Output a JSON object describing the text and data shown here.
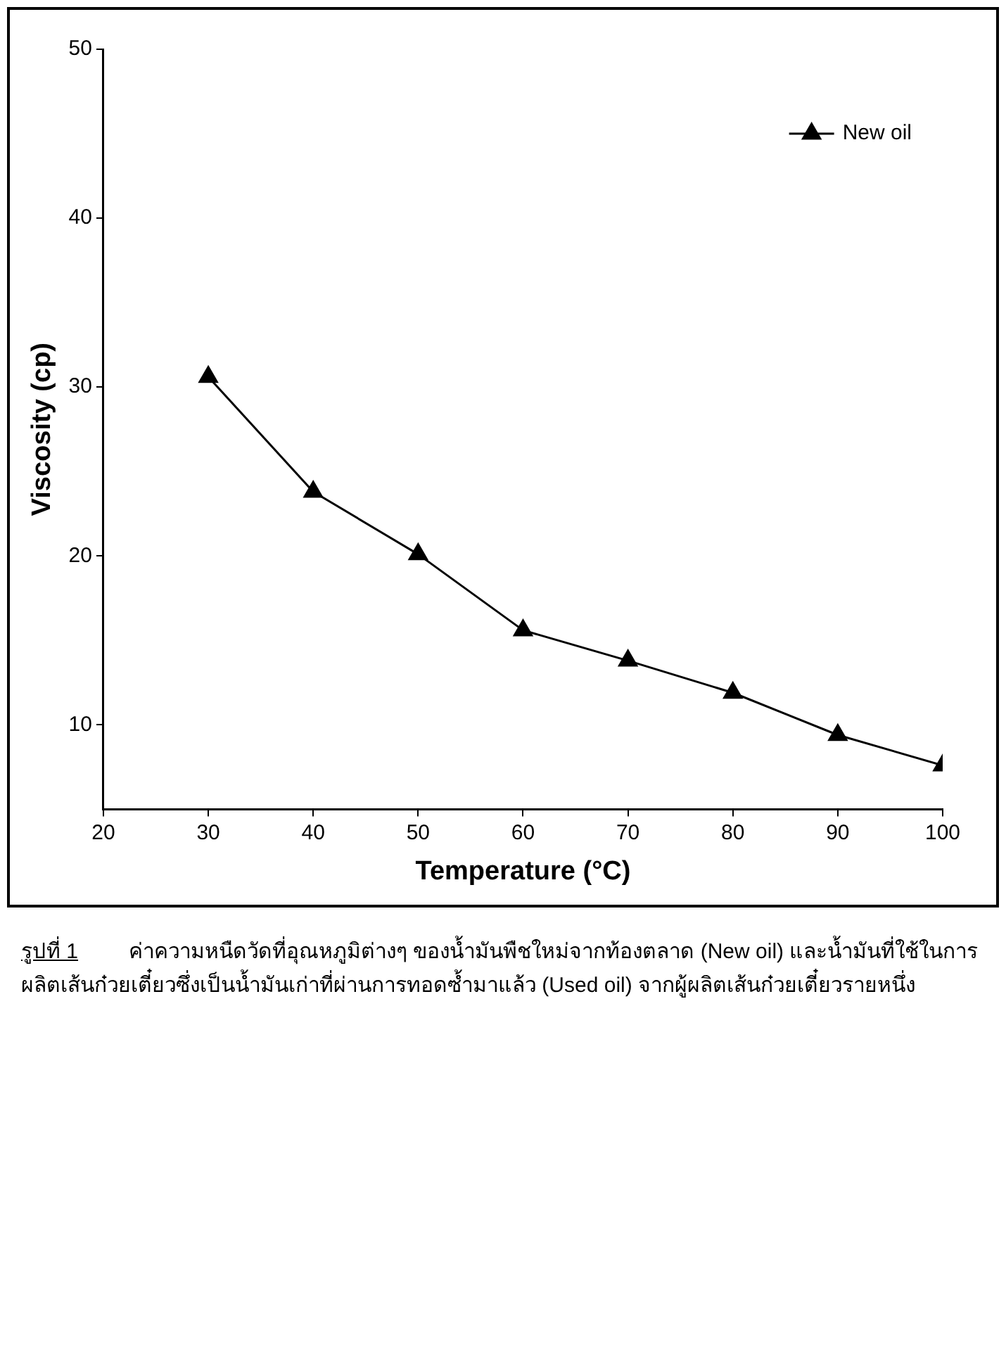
{
  "chart_data": {
    "type": "line",
    "xlabel": "Temperature (°C)",
    "ylabel": "Viscosity (cp)",
    "x": [
      30,
      40,
      50,
      60,
      70,
      80,
      90,
      100
    ],
    "series": [
      {
        "name": "New oil",
        "color": "#000000",
        "values": [
          30.6,
          23.8,
          20.1,
          15.6,
          13.8,
          11.9,
          9.4,
          7.6
        ]
      }
    ],
    "xlim": [
      20,
      100
    ],
    "xticks": [
      20,
      30,
      40,
      50,
      60,
      70,
      80,
      90,
      100
    ],
    "ylim": [
      5,
      50
    ],
    "yticks": [
      10,
      20,
      30,
      40,
      50
    ],
    "grid": false,
    "legend": "top right",
    "marker": "triangle",
    "annotations": [
      "รูปที่ 1",
      "ค่าความหนืดวัดที่อุณหภูมิต่างๆ ของน้ำมันพืชใหม่จากท้องตลาด (New oil) และน้ำมันที่ใช้ในการผลิตเส้นก๋วยเตี๋ยวซึ่งเป็นน้ำมันเก่าที่ผ่านการทอดซ้ำมาแล้ว (Used oil) จากผู้ผลิตเส้นก๋วยเตี๋ยวรายหนึ่ง"
    ]
  }
}
